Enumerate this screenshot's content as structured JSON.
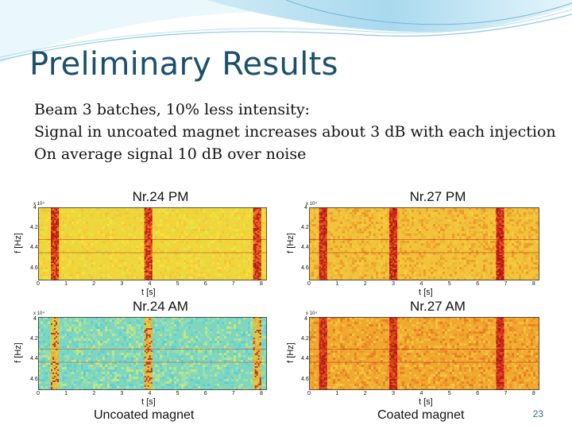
{
  "slide": {
    "title": "Preliminary Results",
    "body_lines": [
      "Beam 3 batches, 10% less intensity:",
      "Signal in uncoated magnet increases about 3 dB with each injection",
      "On average signal 10 dB over noise"
    ],
    "captions": {
      "left": "Uncoated magnet",
      "right": "Coated magnet"
    },
    "page_number": "23"
  },
  "colors": {
    "title": "#1a4f6e",
    "accent": "#2f6f99"
  },
  "plots": [
    {
      "title": "Nr.24 PM",
      "ylabel": "f [Hz]",
      "xlabel": "t [s]",
      "yticks": [
        "4",
        "4.2",
        "4.4",
        "4.6"
      ],
      "y_exponent": "x 10⁴",
      "xticks": [
        "0",
        "1",
        "2",
        "3",
        "4",
        "5",
        "6",
        "7",
        "8"
      ],
      "style": "uncoated-pm",
      "bands_s": [
        0.6,
        3.95,
        7.85
      ]
    },
    {
      "title": "Nr.27 PM",
      "ylabel": "f [Hz]",
      "xlabel": "t [s]",
      "yticks": [
        "4",
        "4.2",
        "4.4",
        "4.6"
      ],
      "y_exponent": "x 10⁴",
      "xticks": [
        "0",
        "1",
        "2",
        "3",
        "4",
        "5",
        "6",
        "7",
        "8"
      ],
      "style": "coated-pm",
      "bands_s": [
        0.5,
        3.0,
        6.8
      ]
    },
    {
      "title": "Nr.24 AM",
      "ylabel": "f [Hz]",
      "xlabel": "t [s]",
      "yticks": [
        "4",
        "4.2",
        "4.4",
        "4.6"
      ],
      "y_exponent": "x 10⁴",
      "xticks": [
        "0",
        "1",
        "2",
        "3",
        "4",
        "5",
        "6",
        "7",
        "8"
      ],
      "style": "uncoated-am",
      "bands_s": [
        0.6,
        3.95,
        7.85
      ]
    },
    {
      "title": "Nr.27 AM",
      "ylabel": "f [Hz]",
      "xlabel": "t [s]",
      "yticks": [
        "4",
        "4.2",
        "4.4",
        "4.6"
      ],
      "y_exponent": "x 10⁴",
      "xticks": [
        "0",
        "1",
        "2",
        "3",
        "4",
        "5",
        "6",
        "7",
        "8"
      ],
      "style": "coated-am",
      "bands_s": [
        0.5,
        3.0,
        6.8
      ]
    }
  ]
}
